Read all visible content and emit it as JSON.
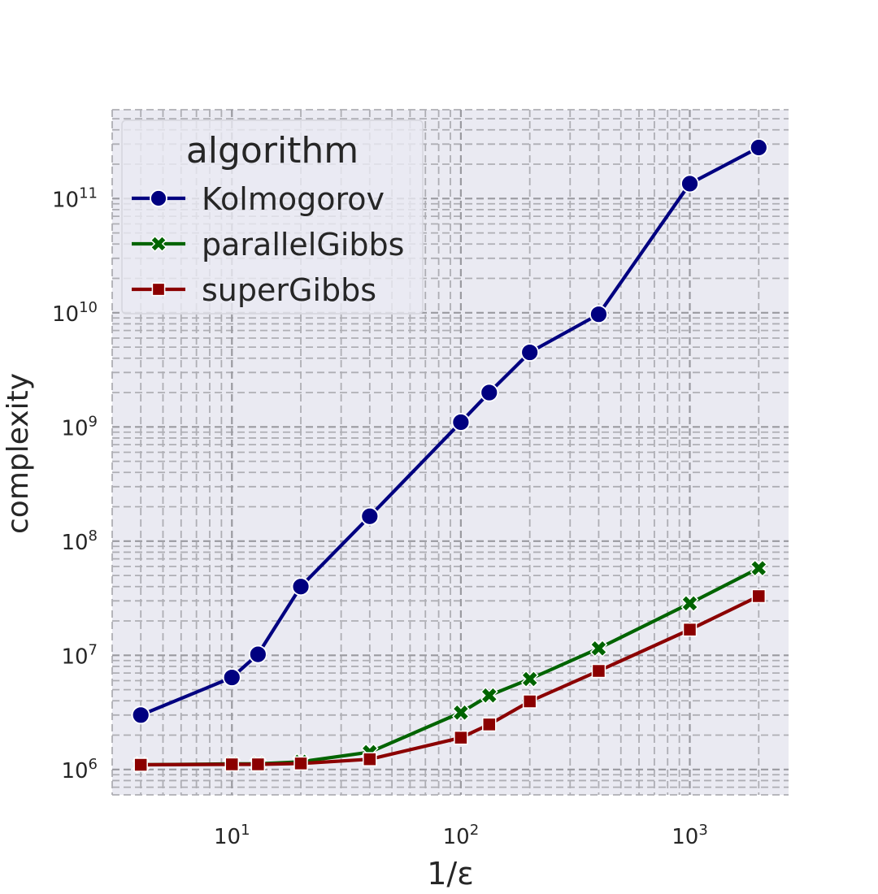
{
  "chart_data": {
    "type": "line",
    "xscale": "log",
    "yscale": "log",
    "xlabel": "1/ε",
    "ylabel": "complexity",
    "xlim": [
      3.0,
      2700
    ],
    "ylim": [
      600000,
      600000000000
    ],
    "x_ticks": [
      {
        "value": 10,
        "base": "10",
        "exp": "1"
      },
      {
        "value": 100,
        "base": "10",
        "exp": "2"
      },
      {
        "value": 1000,
        "base": "10",
        "exp": "3"
      }
    ],
    "y_ticks": [
      {
        "value": 1000000,
        "base": "10",
        "exp": "6"
      },
      {
        "value": 10000000,
        "base": "10",
        "exp": "7"
      },
      {
        "value": 100000000,
        "base": "10",
        "exp": "8"
      },
      {
        "value": 1000000000,
        "base": "10",
        "exp": "9"
      },
      {
        "value": 10000000000,
        "base": "10",
        "exp": "10"
      },
      {
        "value": 100000000000,
        "base": "10",
        "exp": "11"
      }
    ],
    "grid": true,
    "legend": {
      "title": "algorithm",
      "placement": "top-left"
    },
    "x": [
      4,
      10,
      13,
      20,
      40,
      100,
      133,
      200,
      400,
      1000,
      2000
    ],
    "series": [
      {
        "name": "Kolmogorov",
        "color": "#000080",
        "marker": "circle",
        "values": [
          3000000,
          6400000,
          10200000,
          40000000,
          165000000,
          1100000000,
          2000000000,
          4500000000,
          9700000000,
          135000000000,
          280000000000
        ]
      },
      {
        "name": "parallelGibbs",
        "color": "#006400",
        "marker": "x",
        "values": [
          1100000,
          1120000,
          1120000,
          1170000,
          1420000,
          3150000,
          4450000,
          6200000,
          11500000,
          28500000,
          58000000
        ]
      },
      {
        "name": "superGibbs",
        "color": "#8b0000",
        "marker": "square",
        "values": [
          1100000,
          1110000,
          1110000,
          1130000,
          1230000,
          1900000,
          2480000,
          3950000,
          7300000,
          16800000,
          33000000
        ]
      }
    ]
  }
}
